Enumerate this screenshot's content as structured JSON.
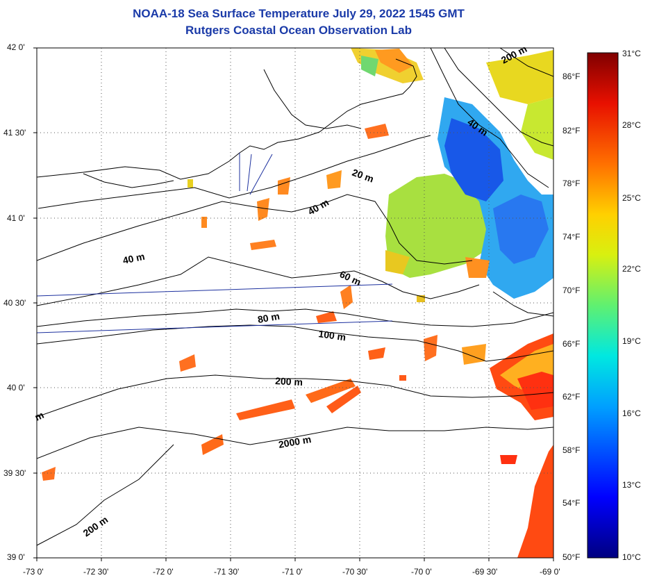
{
  "title": "NOAA-18 Sea Surface Temperature July 29, 2022 1545 GMT",
  "subtitle": "Rutgers Coastal Ocean Observation Lab",
  "lat_labels": [
    "42 0'",
    "41 30'",
    "41 0'",
    "40 30'",
    "40 0'",
    "39 30'",
    "39 0'"
  ],
  "lon_labels": [
    "-73 0'",
    "-72 30'",
    "-72 0'",
    "-71 30'",
    "-71 0'",
    "-70 30'",
    "-70 0'",
    "-69 30'",
    "-69 0'"
  ],
  "fahrenheit_labels": [
    "86°F",
    "82°F",
    "78°F",
    "74°F",
    "70°F",
    "66°F",
    "62°F",
    "58°F",
    "54°F",
    "50°F"
  ],
  "celsius_labels": [
    "31°C",
    "28°C",
    "25°C",
    "22°C",
    "19°C",
    "16°C",
    "13°C",
    "10°C"
  ],
  "contour_labels": [
    "200 m",
    "40 m",
    "20 m",
    "40 m",
    "40 m",
    "60 m",
    "80 m",
    "100 m",
    "200 m",
    "2000 m",
    "200 m",
    "m"
  ],
  "colors": {
    "title": "#1a3aa8",
    "transect": "#1b2f9e",
    "contour": "#000000"
  }
}
